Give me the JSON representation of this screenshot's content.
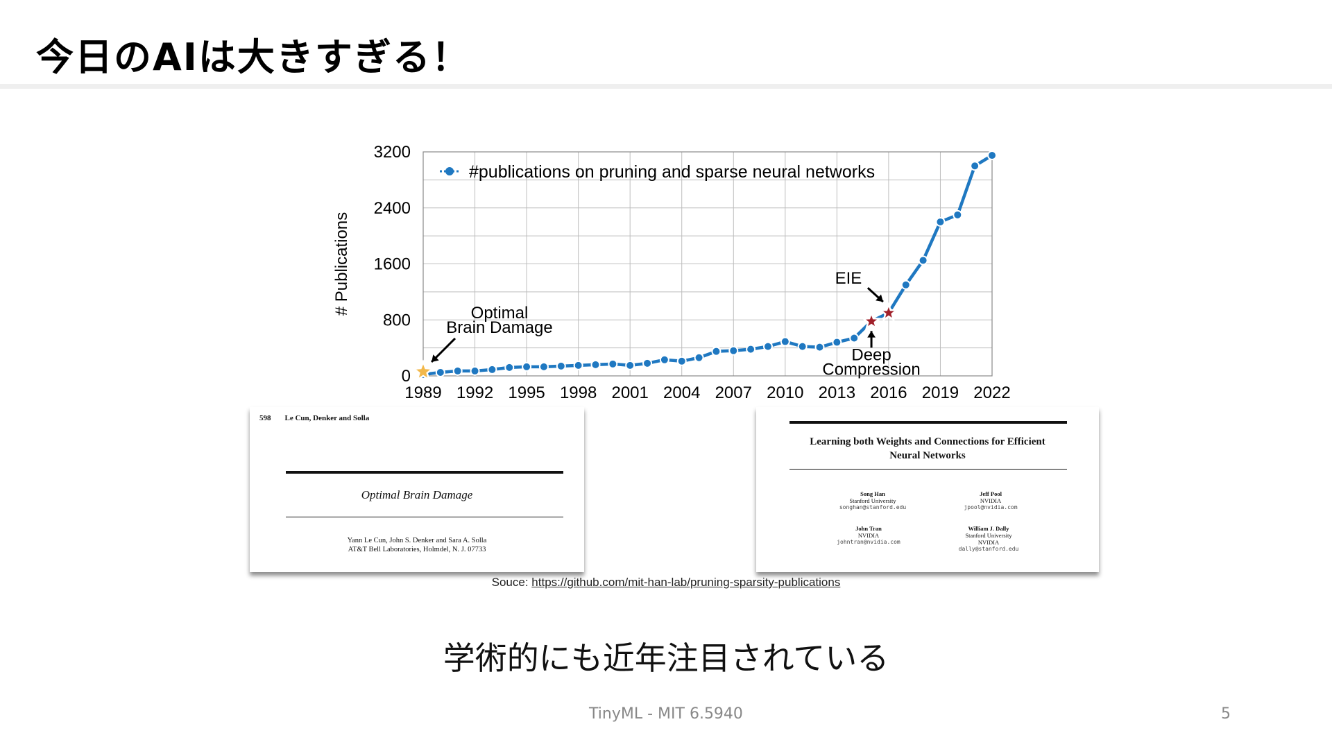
{
  "slide": {
    "title": "今日のAIは大きすぎる！",
    "subtitle": "学術的にも近年注目されている",
    "footer": "TinyML - MIT 6.5940",
    "page_number": "5"
  },
  "source": {
    "prefix": "Souce: ",
    "url": "https://github.com/mit-han-lab/pruning-sparsity-publications"
  },
  "chart_data": {
    "type": "line",
    "ylabel": "# Publications",
    "xlabel": "",
    "xlim": [
      1989,
      2022
    ],
    "ylim": [
      0,
      3200
    ],
    "x_ticks": [
      "1989",
      "1992",
      "1995",
      "1998",
      "2001",
      "2004",
      "2007",
      "2010",
      "2013",
      "2016",
      "2019",
      "2022"
    ],
    "y_ticks": [
      "0",
      "800",
      "1600",
      "2400",
      "3200"
    ],
    "grid": true,
    "legend_position": "top-left",
    "series": [
      {
        "name": "#publications on pruning and sparse neural networks",
        "color": "#1f78c1",
        "x": [
          1989,
          1990,
          1991,
          1992,
          1993,
          1994,
          1995,
          1996,
          1997,
          1998,
          1999,
          2000,
          2001,
          2002,
          2003,
          2004,
          2005,
          2006,
          2007,
          2008,
          2009,
          2010,
          2011,
          2012,
          2013,
          2014,
          2015,
          2016,
          2017,
          2018,
          2019,
          2020,
          2021,
          2022
        ],
        "y": [
          20,
          50,
          70,
          70,
          90,
          120,
          130,
          130,
          140,
          150,
          160,
          170,
          150,
          180,
          230,
          210,
          260,
          350,
          360,
          380,
          420,
          490,
          420,
          410,
          480,
          540,
          780,
          900,
          1300,
          1650,
          2200,
          2300,
          3000,
          3150
        ]
      }
    ],
    "annotations": [
      {
        "text": [
          "Optimal",
          "Brain Damage"
        ],
        "x": 1989,
        "y": 20,
        "marker_color": "#f2b84b"
      },
      {
        "text": [
          "EIE"
        ],
        "x": 2016,
        "y": 900,
        "marker_color": "#a0202a"
      },
      {
        "text": [
          "Deep",
          "Compression"
        ],
        "x": 2015,
        "y": 780,
        "marker_color": "#a0202a"
      }
    ]
  },
  "papers": {
    "left": {
      "page": "598",
      "running_head": "Le Cun, Denker and Solla",
      "title": "Optimal Brain Damage",
      "authors": "Yann Le Cun, John S. Denker and Sara A. Solla",
      "affiliation": "AT&T Bell Laboratories, Holmdel, N. J. 07733"
    },
    "right": {
      "title_line1": "Learning both Weights and Connections for Efficient",
      "title_line2": "Neural Networks",
      "authors": [
        {
          "name": "Song Han",
          "aff": "Stanford University",
          "aff2": "",
          "email": "songhan@stanford.edu"
        },
        {
          "name": "Jeff Pool",
          "aff": "NVIDIA",
          "aff2": "",
          "email": "jpool@nvidia.com"
        },
        {
          "name": "John Tran",
          "aff": "NVIDIA",
          "aff2": "",
          "email": "johntran@nvidia.com"
        },
        {
          "name": "William J. Dally",
          "aff": "Stanford University",
          "aff2": "NVIDIA",
          "email": "dally@stanford.edu"
        }
      ]
    }
  }
}
